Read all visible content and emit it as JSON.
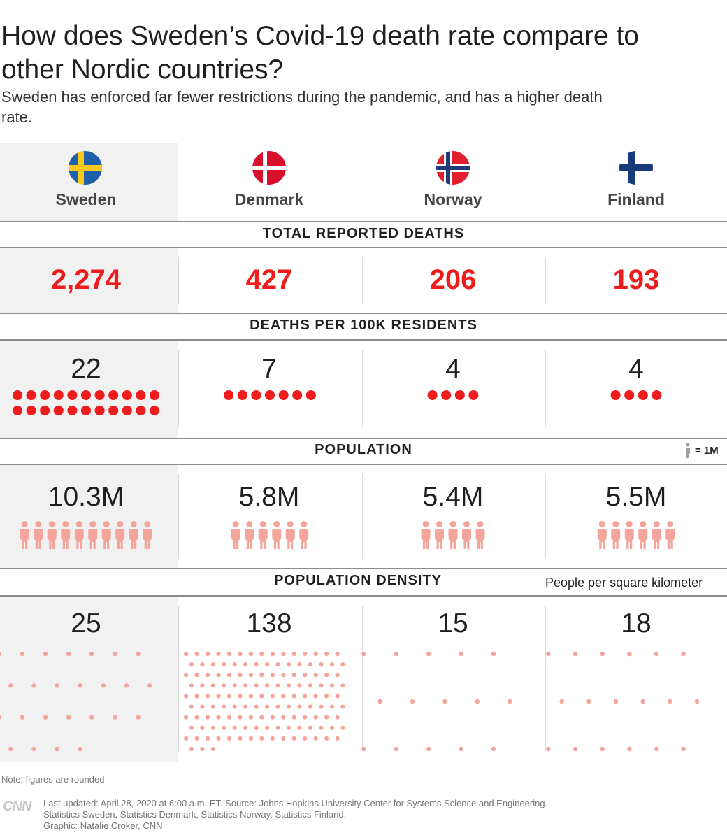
{
  "title": "How does Sweden’s Covid-19 death rate compare to other Nordic countries?",
  "subtitle": "Sweden has enforced far fewer restrictions during the pandemic, and has a higher death rate.",
  "sections": {
    "total_deaths": "TOTAL REPORTED DEATHS",
    "deaths_per_100k": "DEATHS PER 100K RESIDENTS",
    "population": "POPULATION",
    "population_legend": "= 1M",
    "density": "POPULATION DENSITY",
    "density_unit": "People per square kilometer"
  },
  "colors": {
    "accent": "#ee1c1c",
    "person": "#f4a59b",
    "density_dot": "#f4a59b",
    "legend_person": "#a0a0a0",
    "shade": "#f1f1f1"
  },
  "chart_data": {
    "type": "table",
    "countries": [
      {
        "name": "Sweden",
        "flag": "sweden-flag-icon",
        "deaths": "2,274",
        "deaths_value": 2274,
        "per100k": "22",
        "per100k_value": 22,
        "population": "10.3M",
        "population_value": 10.3,
        "density": "25",
        "density_value": 25
      },
      {
        "name": "Denmark",
        "flag": "denmark-flag-icon",
        "deaths": "427",
        "deaths_value": 427,
        "per100k": "7",
        "per100k_value": 7,
        "population": "5.8M",
        "population_value": 5.8,
        "density": "138",
        "density_value": 138
      },
      {
        "name": "Norway",
        "flag": "norway-flag-icon",
        "deaths": "206",
        "deaths_value": 206,
        "per100k": "4",
        "per100k_value": 4,
        "population": "5.4M",
        "population_value": 5.4,
        "density": "15",
        "density_value": 15
      },
      {
        "name": "Finland",
        "flag": "finland-flag-icon",
        "deaths": "193",
        "deaths_value": 193,
        "per100k": "4",
        "per100k_value": 4,
        "population": "5.5M",
        "population_value": 5.5,
        "density": "18",
        "density_value": 18
      }
    ]
  },
  "note": "Note: figures are rounded",
  "footer": {
    "logo": "CNN",
    "line1": "Last updated: April 28, 2020 at 6:00 a.m. ET. Source: Johns Hopkins University Center for Systems Science and Engineering.",
    "line2": "Statistics Sweden, Statistics Denmark, Statistics Norway, Statistics Finland.",
    "line3": "Graphic: Natalie Croker, CNN"
  }
}
